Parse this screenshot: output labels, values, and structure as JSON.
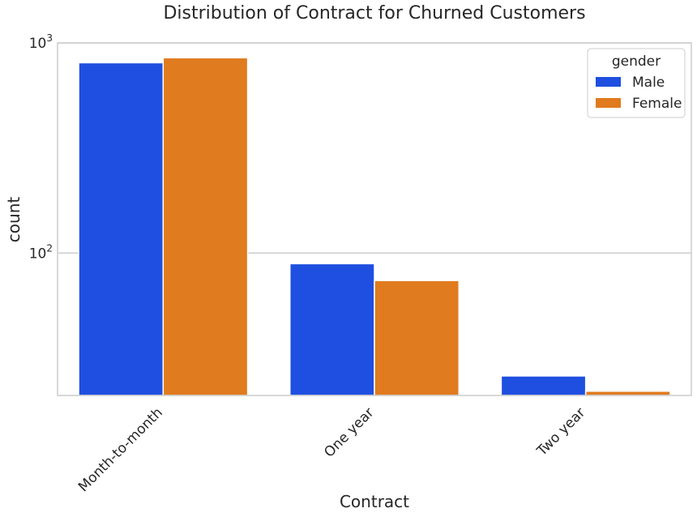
{
  "chart_data": {
    "type": "bar",
    "title": "Distribution of Contract for Churned Customers",
    "xlabel": "Contract",
    "ylabel": "count",
    "yscale": "log",
    "ylim": [
      21,
      1000
    ],
    "yticks": [
      {
        "value": 100,
        "base": "10",
        "exp": "2"
      },
      {
        "value": 1000,
        "base": "10",
        "exp": "3"
      }
    ],
    "categories": [
      "Month-to-month",
      "One year",
      "Two year"
    ],
    "series": [
      {
        "name": "Male",
        "color": "#1f4fe0",
        "values": [
          805,
          89,
          26
        ]
      },
      {
        "name": "Female",
        "color": "#e07b1f",
        "values": [
          850,
          74,
          22
        ]
      }
    ],
    "legend": {
      "title": "gender",
      "placement": "top-right"
    },
    "grid": "horizontal"
  }
}
